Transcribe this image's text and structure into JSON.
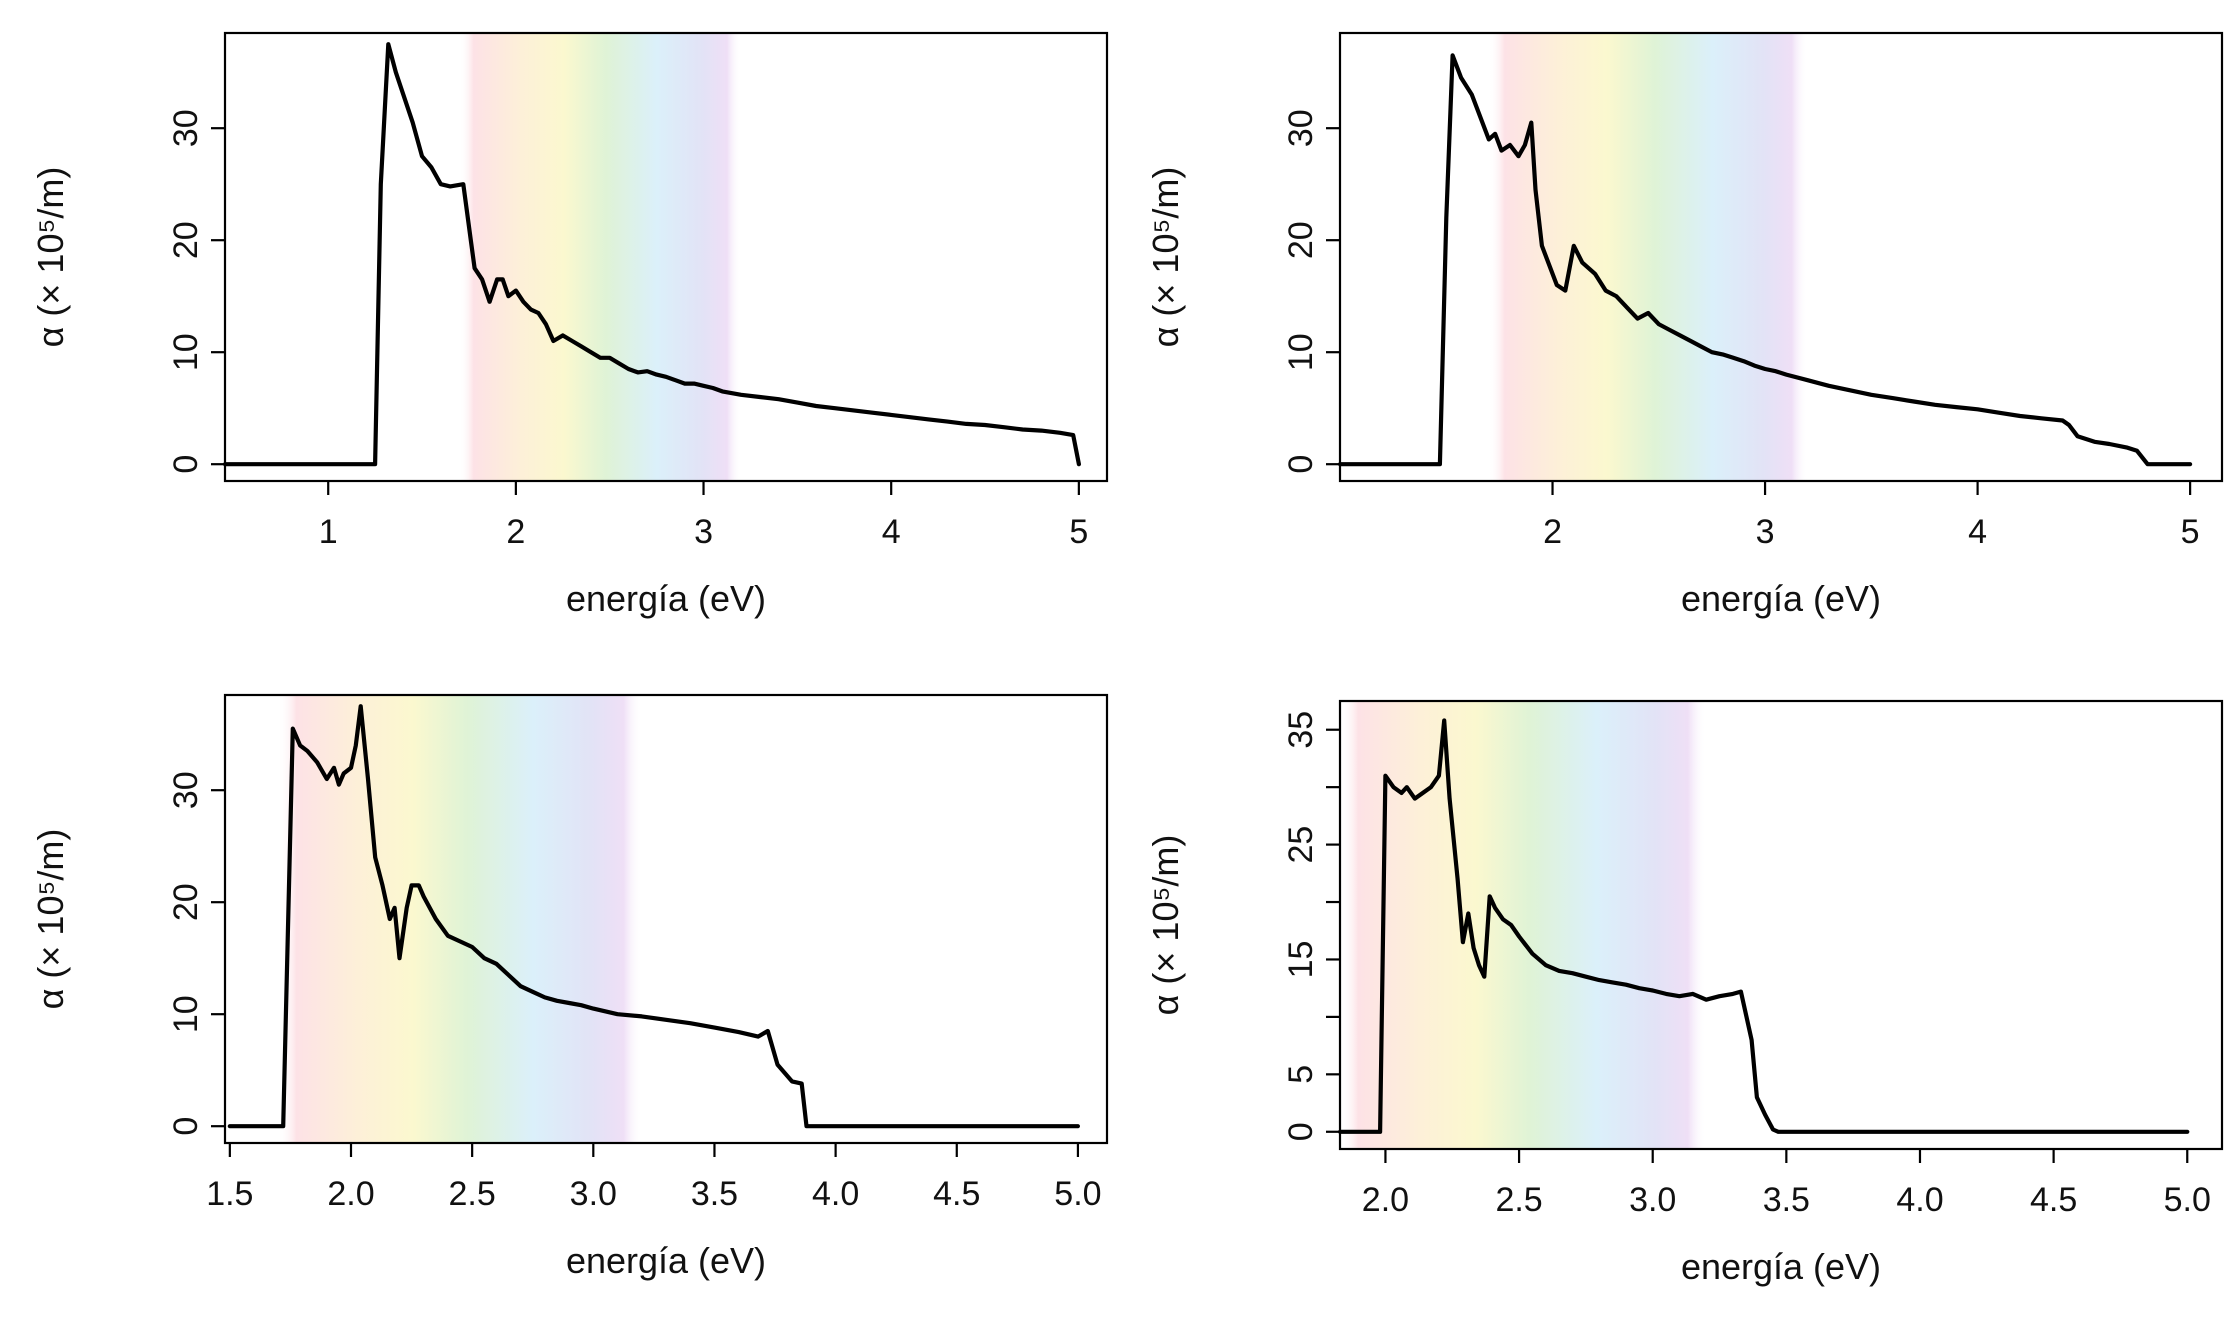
{
  "chart_data": [
    {
      "type": "line",
      "xlabel": "energía (eV)",
      "ylabel": "α (× 10⁵/m)",
      "xlim": [
        0.45,
        5.15
      ],
      "ylim": [
        -1.5,
        38.5
      ],
      "xticks": [
        1,
        2,
        3,
        4,
        5
      ],
      "xtick_labels": [
        "1",
        "2",
        "3",
        "4",
        "5"
      ],
      "yticks": [
        0,
        10,
        20,
        30
      ],
      "ytick_labels": [
        "0",
        "10",
        "20",
        "30"
      ],
      "visible_spectrum_band_eV": [
        1.7,
        3.2
      ],
      "grid": false,
      "series": [
        {
          "x": [
            0.45,
            1.0,
            1.25,
            1.28,
            1.32,
            1.36,
            1.4,
            1.45,
            1.5,
            1.55,
            1.6,
            1.65,
            1.72,
            1.76,
            1.78,
            1.82,
            1.86,
            1.9,
            1.93,
            1.96,
            2.0,
            2.04,
            2.08,
            2.12,
            2.16,
            2.2,
            2.25,
            2.3,
            2.35,
            2.4,
            2.45,
            2.5,
            2.55,
            2.6,
            2.65,
            2.7,
            2.75,
            2.8,
            2.85,
            2.9,
            2.95,
            3.0,
            3.05,
            3.1,
            3.2,
            3.3,
            3.4,
            3.5,
            3.6,
            3.7,
            3.8,
            3.9,
            4.0,
            4.1,
            4.2,
            4.3,
            4.4,
            4.5,
            4.6,
            4.7,
            4.8,
            4.9,
            4.97,
            5.0
          ],
          "y": [
            0,
            0,
            0,
            25,
            37.5,
            35,
            33,
            30.5,
            27.5,
            26.5,
            25,
            24.8,
            25,
            20,
            17.5,
            16.5,
            14.5,
            16.5,
            16.5,
            15,
            15.5,
            14.5,
            13.8,
            13.5,
            12.5,
            11,
            11.5,
            11,
            10.5,
            10,
            9.5,
            9.5,
            9,
            8.5,
            8.2,
            8.3,
            8,
            7.8,
            7.5,
            7.2,
            7.2,
            7,
            6.8,
            6.5,
            6.2,
            6,
            5.8,
            5.5,
            5.2,
            5,
            4.8,
            4.6,
            4.4,
            4.2,
            4,
            3.8,
            3.6,
            3.5,
            3.3,
            3.1,
            3,
            2.8,
            2.6,
            0
          ]
        }
      ]
    },
    {
      "type": "line",
      "xlabel": "energía (eV)",
      "ylabel": "α (× 10⁵/m)",
      "xlim": [
        1.0,
        5.15
      ],
      "ylim": [
        -1.5,
        38.5
      ],
      "xticks": [
        2,
        3,
        4,
        5
      ],
      "xtick_labels": [
        "2",
        "3",
        "4",
        "5"
      ],
      "yticks": [
        0,
        10,
        20,
        30
      ],
      "ytick_labels": [
        "0",
        "10",
        "20",
        "30"
      ],
      "visible_spectrum_band_eV": [
        1.7,
        3.2
      ],
      "grid": false,
      "series": [
        {
          "x": [
            1.0,
            1.3,
            1.47,
            1.5,
            1.53,
            1.57,
            1.62,
            1.66,
            1.7,
            1.73,
            1.76,
            1.8,
            1.84,
            1.87,
            1.9,
            1.92,
            1.95,
            1.98,
            2.02,
            2.06,
            2.1,
            2.14,
            2.2,
            2.25,
            2.3,
            2.35,
            2.4,
            2.45,
            2.5,
            2.55,
            2.6,
            2.65,
            2.7,
            2.75,
            2.8,
            2.85,
            2.9,
            2.95,
            3.0,
            3.05,
            3.1,
            3.2,
            3.3,
            3.4,
            3.5,
            3.6,
            3.7,
            3.8,
            3.9,
            4.0,
            4.1,
            4.2,
            4.3,
            4.4,
            4.43,
            4.47,
            4.55,
            4.62,
            4.7,
            4.75,
            4.8,
            5.0
          ],
          "y": [
            0,
            0,
            0,
            22,
            36.5,
            34.5,
            33,
            31,
            29,
            29.5,
            28,
            28.5,
            27.5,
            28.5,
            30.5,
            24.5,
            19.5,
            18,
            16,
            15.5,
            19.5,
            18,
            17,
            15.5,
            15,
            14,
            13,
            13.5,
            12.5,
            12,
            11.5,
            11,
            10.5,
            10,
            9.8,
            9.5,
            9.2,
            8.8,
            8.5,
            8.3,
            8,
            7.5,
            7,
            6.6,
            6.2,
            5.9,
            5.6,
            5.3,
            5.1,
            4.9,
            4.6,
            4.3,
            4.1,
            3.9,
            3.5,
            2.5,
            2,
            1.8,
            1.5,
            1.2,
            0,
            0
          ]
        }
      ]
    },
    {
      "type": "line",
      "xlabel": "energía (eV)",
      "ylabel": "α (× 10⁵/m)",
      "xlim": [
        1.48,
        5.12
      ],
      "ylim": [
        -1.5,
        38.5
      ],
      "xticks": [
        1.5,
        2.0,
        2.5,
        3.0,
        3.5,
        4.0,
        4.5,
        5.0
      ],
      "xtick_labels": [
        "1.5",
        "2.0",
        "2.5",
        "3.0",
        "3.5",
        "4.0",
        "4.5",
        "5.0"
      ],
      "yticks": [
        0,
        10,
        20,
        30
      ],
      "ytick_labels": [
        "0",
        "10",
        "20",
        "30"
      ],
      "visible_spectrum_band_eV": [
        1.7,
        3.2
      ],
      "grid": false,
      "series": [
        {
          "x": [
            1.5,
            1.72,
            1.76,
            1.79,
            1.82,
            1.86,
            1.9,
            1.93,
            1.95,
            1.97,
            2.0,
            2.02,
            2.04,
            2.07,
            2.1,
            2.13,
            2.16,
            2.18,
            2.2,
            2.23,
            2.25,
            2.28,
            2.3,
            2.35,
            2.4,
            2.45,
            2.5,
            2.55,
            2.6,
            2.65,
            2.7,
            2.75,
            2.8,
            2.85,
            2.9,
            2.95,
            3.0,
            3.1,
            3.2,
            3.3,
            3.4,
            3.5,
            3.6,
            3.68,
            3.72,
            3.76,
            3.82,
            3.86,
            3.88,
            4.0,
            5.0
          ],
          "y": [
            0,
            0,
            35.5,
            34,
            33.5,
            32.5,
            31,
            32,
            30.5,
            31.5,
            32,
            34,
            37.5,
            31,
            24,
            21.5,
            18.5,
            19.5,
            15,
            19.5,
            21.5,
            21.5,
            20.5,
            18.5,
            17,
            16.5,
            16,
            15,
            14.5,
            13.5,
            12.5,
            12,
            11.5,
            11.2,
            11,
            10.8,
            10.5,
            10,
            9.8,
            9.5,
            9.2,
            8.8,
            8.4,
            8,
            8.5,
            5.5,
            4,
            3.8,
            0,
            0,
            0
          ]
        }
      ]
    },
    {
      "type": "line",
      "xlabel": "energía (eV)",
      "ylabel": "α (× 10⁵/m)",
      "xlim": [
        1.83,
        5.13
      ],
      "ylim": [
        -1.5,
        37.5
      ],
      "xticks": [
        2.0,
        2.5,
        3.0,
        3.5,
        4.0,
        4.5,
        5.0
      ],
      "xtick_labels": [
        "2.0",
        "2.5",
        "3.0",
        "3.5",
        "4.0",
        "4.5",
        "5.0"
      ],
      "yticks": [
        0,
        5,
        10,
        15,
        20,
        25,
        30,
        35
      ],
      "ytick_labels": [
        "0",
        "5",
        "",
        "15",
        "",
        "25",
        "",
        "35"
      ],
      "visible_spectrum_band_eV": [
        1.7,
        3.2
      ],
      "grid": false,
      "series": [
        {
          "x": [
            1.83,
            1.98,
            2.0,
            2.03,
            2.06,
            2.08,
            2.11,
            2.14,
            2.17,
            2.2,
            2.22,
            2.24,
            2.27,
            2.29,
            2.31,
            2.33,
            2.35,
            2.37,
            2.39,
            2.41,
            2.44,
            2.47,
            2.5,
            2.55,
            2.6,
            2.65,
            2.7,
            2.75,
            2.8,
            2.85,
            2.9,
            2.95,
            3.0,
            3.05,
            3.1,
            3.15,
            3.2,
            3.25,
            3.3,
            3.33,
            3.37,
            3.39,
            3.42,
            3.45,
            3.47,
            3.6,
            5.0
          ],
          "y": [
            0,
            0,
            31,
            30,
            29.5,
            30,
            29,
            29.5,
            30,
            31,
            35.8,
            29,
            22,
            16.5,
            19,
            16,
            14.5,
            13.5,
            20.5,
            19.5,
            18.5,
            18,
            17,
            15.5,
            14.5,
            14,
            13.8,
            13.5,
            13.2,
            13,
            12.8,
            12.5,
            12.3,
            12,
            11.8,
            12,
            11.5,
            11.8,
            12,
            12.2,
            8,
            3,
            1.5,
            0.2,
            0,
            0,
            0
          ]
        }
      ]
    }
  ]
}
